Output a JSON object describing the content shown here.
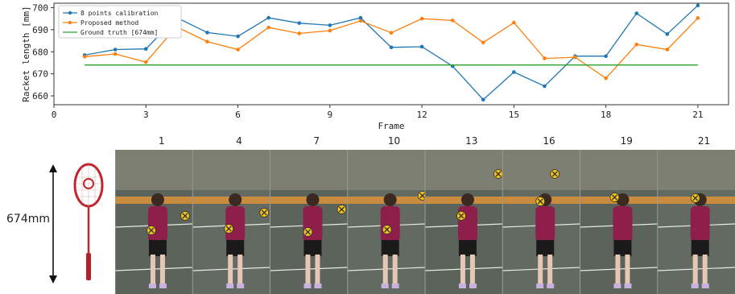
{
  "chart_data": {
    "type": "line",
    "xlabel": "Frame",
    "ylabel": "Racket length [mm]",
    "xlim": [
      0,
      22
    ],
    "ylim": [
      656,
      702
    ],
    "xticks": [
      0,
      3,
      6,
      9,
      12,
      15,
      18,
      21
    ],
    "yticks": [
      660,
      670,
      680,
      690,
      700
    ],
    "legend_position": "top-left",
    "series": [
      {
        "name": "8 points calibration",
        "color": "#1f77b4",
        "x": [
          1,
          2,
          3,
          4,
          5,
          6,
          7,
          8,
          9,
          10,
          11,
          12,
          13,
          14,
          15,
          16,
          17,
          18,
          19,
          20,
          21
        ],
        "values": [
          678.5,
          681,
          681.3,
          695.5,
          688.7,
          687,
          695.4,
          693,
          692,
          695.4,
          682,
          682.3,
          673.5,
          658.3,
          670.8,
          664.4,
          678,
          678,
          697.4,
          688,
          701
        ]
      },
      {
        "name": "Proposed method",
        "color": "#ff7f0e",
        "x": [
          1,
          2,
          3,
          4,
          5,
          6,
          7,
          8,
          9,
          10,
          11,
          12,
          13,
          14,
          15,
          16,
          17,
          18,
          19,
          20,
          21
        ],
        "values": [
          677.8,
          679,
          675.3,
          691.3,
          684.6,
          681,
          691,
          688.3,
          689.6,
          694,
          688.6,
          695,
          694.2,
          684.2,
          693.2,
          677,
          677.5,
          668,
          683.3,
          681,
          695.3
        ]
      },
      {
        "name": "Ground truth [674mm]",
        "color": "#2ca02c",
        "x": [
          1,
          21
        ],
        "values": [
          674,
          674
        ]
      }
    ]
  },
  "figure": {
    "racket_length_label": "674mm",
    "frames": [
      "1",
      "4",
      "7",
      "10",
      "13",
      "16",
      "19",
      "21"
    ]
  },
  "colors": {
    "court": "#5e665d",
    "marker": "#f2c21b",
    "shirt": "#8d1f4a"
  }
}
